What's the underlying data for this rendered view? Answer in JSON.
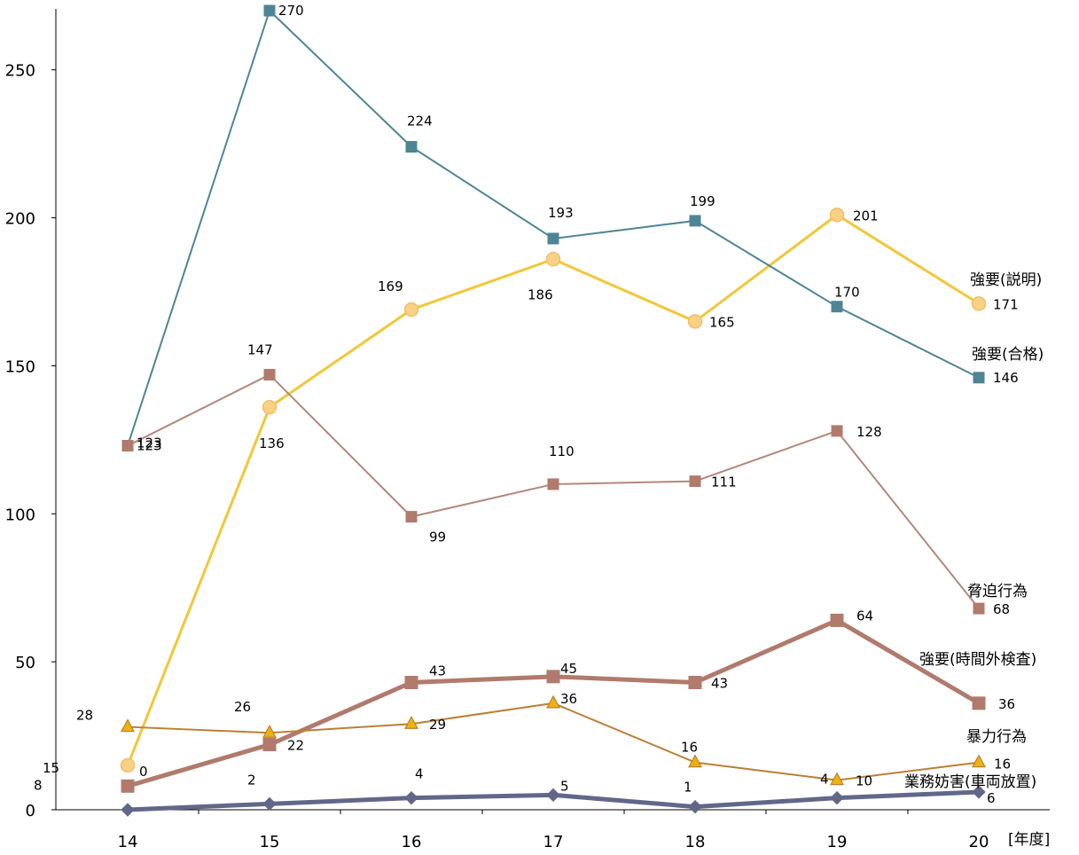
{
  "chart_data": {
    "type": "line",
    "categories": [
      "14",
      "15",
      "16",
      "17",
      "18",
      "19",
      "20"
    ],
    "xlabel": "",
    "x_unit_label": "[年度]",
    "ylabel": "",
    "ylim": [
      0,
      270
    ],
    "yticks": [
      0,
      50,
      100,
      150,
      200,
      250
    ],
    "grid": false,
    "series": [
      {
        "name": "強要(説明)",
        "color": "#F2C738",
        "marker_fill": "#F8D185",
        "marker_stroke": "#F2BE68",
        "marker": "circle",
        "values": [
          15,
          136,
          169,
          186,
          165,
          201,
          171
        ]
      },
      {
        "name": "強要(合格)",
        "color": "#4E8595",
        "marker_fill": "#4E8595",
        "marker_stroke": "#4E8595",
        "marker": "square",
        "values": [
          123,
          270,
          224,
          193,
          199,
          170,
          146
        ]
      },
      {
        "name": "脅迫行為",
        "color": "#B2887A",
        "marker_fill": "#B07A6D",
        "marker_stroke": "#B07A6D",
        "marker": "square",
        "values": [
          123,
          147,
          99,
          110,
          111,
          128,
          68
        ]
      },
      {
        "name": "強要(時間外検査)",
        "color": "#B07A6D",
        "marker_fill": "#B07A6D",
        "marker_stroke": "#B07A6D",
        "marker": "square",
        "values": [
          8,
          22,
          43,
          45,
          43,
          64,
          36
        ]
      },
      {
        "name": "暴力行為",
        "color": "#B98034",
        "marker_fill": "#F0B10C",
        "marker_stroke": "#B98034",
        "marker": "triangle",
        "values": [
          28,
          26,
          29,
          36,
          16,
          10,
          16
        ]
      },
      {
        "name": "業務妨害(車両放置)",
        "color": "#626789",
        "marker_fill": "#626789",
        "marker_stroke": "#626789",
        "marker": "diamond",
        "values": [
          0,
          2,
          4,
          5,
          1,
          4,
          6
        ]
      }
    ]
  }
}
